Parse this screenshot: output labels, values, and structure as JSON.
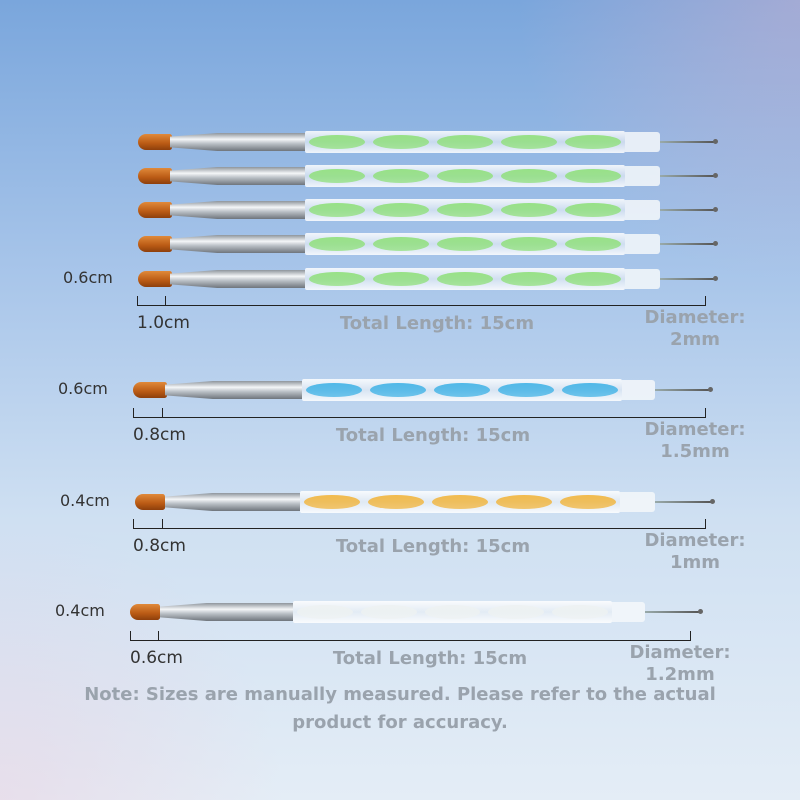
{
  "groups": [
    {
      "count": 5,
      "twist_color": "#8fe07a",
      "tip_width": "0.6cm",
      "bristle_length": "1.0cm",
      "total_length": "Total Length: 15cm",
      "diameter_label": "Diameter:",
      "diameter_value": "2mm"
    },
    {
      "count": 1,
      "twist_color": "#3fb2e6",
      "tip_width": "0.6cm",
      "bristle_length": "0.8cm",
      "total_length": "Total Length: 15cm",
      "diameter_label": "Diameter:",
      "diameter_value": "1.5mm"
    },
    {
      "count": 1,
      "twist_color": "#f2b43a",
      "tip_width": "0.4cm",
      "bristle_length": "0.8cm",
      "total_length": "Total Length: 15cm",
      "diameter_label": "Diameter:",
      "diameter_value": "1mm"
    },
    {
      "count": 1,
      "twist_color": "#eef2f2",
      "tip_width": "0.4cm",
      "bristle_length": "0.6cm",
      "total_length": "Total Length: 15cm",
      "diameter_label": "Diameter:",
      "diameter_value": "1.2mm"
    }
  ],
  "note": {
    "line1": "Note: Sizes are manually measured. Please refer to the actual",
    "line2": "product for accuracy."
  }
}
